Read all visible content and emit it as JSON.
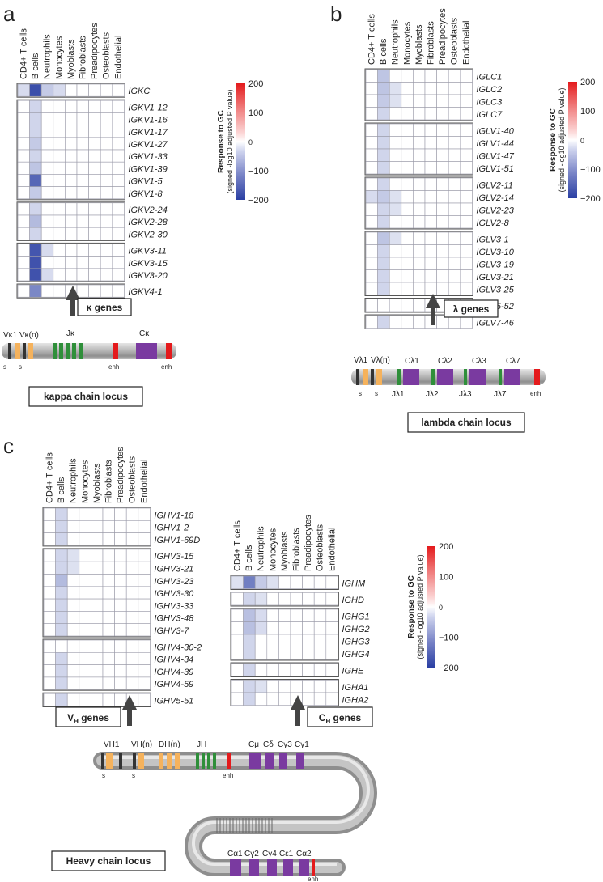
{
  "panels": {
    "a": "a",
    "b": "b",
    "c": "c"
  },
  "cell_types": [
    "CD4+ T cells",
    "B cells",
    "Neutrophils",
    "Monocytes",
    "Myoblasts",
    "Fibroblasts",
    "Preadipocytes",
    "Osteoblasts",
    "Endothelial"
  ],
  "legend": {
    "title": "Response to GC",
    "subtitle": "(signed -log10 adjusted P value)",
    "ticks": [
      "200",
      "100",
      "0",
      "−100",
      "−200"
    ],
    "tick_values": [
      200,
      100,
      0,
      -100,
      -200
    ]
  },
  "gene_group_labels": {
    "kappa": "κ genes",
    "lambda": "λ genes",
    "vh": "VH genes",
    "ch": "CH genes"
  },
  "locus_titles": {
    "kappa": "kappa chain locus",
    "lambda": "lambda chain locus",
    "heavy": "Heavy chain locus"
  },
  "locus_labels": {
    "kappa": {
      "v1": "Vκ1",
      "vn": "Vκ(n)",
      "j": "Jκ",
      "c": "Cκ",
      "s": "s",
      "enh": "enh"
    },
    "lambda": {
      "v1": "Vλ1",
      "vn": "Vλ(n)",
      "c1": "Cλ1",
      "c2": "Cλ2",
      "c3": "Cλ3",
      "c7": "Cλ7",
      "j1": "Jλ1",
      "j2": "Jλ2",
      "j3": "Jλ3",
      "j7": "Jλ7",
      "s": "s",
      "enh": "enh"
    },
    "heavy": {
      "v1": "VH1",
      "vn": "VH(n)",
      "d": "DH(n)",
      "j": "JH",
      "cmu": "Cμ",
      "cdelta": "Cδ",
      "cg3": "Cγ3",
      "cg1": "Cγ1",
      "s": "s",
      "enh": "enh",
      "bottom": [
        "Cα1",
        "Cγ2",
        "Cγ4",
        "Cε1",
        "Cα2"
      ]
    }
  },
  "colors": {
    "up": "#e41a1c",
    "down": "#2a3fa3",
    "arrow": "#444444",
    "grid": "#9a9aa8"
  },
  "chart_data": [
    {
      "type": "heatmap",
      "panel": "a",
      "x": [
        "CD4+ T cells",
        "B cells",
        "Neutrophils",
        "Monocytes",
        "Myoblasts",
        "Fibroblasts",
        "Preadipocytes",
        "Osteoblasts",
        "Endothelial"
      ],
      "value_range": [
        -200,
        200
      ],
      "groups": [
        {
          "rows": [
            "IGKC"
          ],
          "values": [
            [
              -25,
              -180,
              -40,
              -25,
              0,
              0,
              0,
              0,
              0
            ]
          ]
        },
        {
          "rows": [
            "IGKV1-12",
            "IGKV1-16",
            "IGKV1-17",
            "IGKV1-27",
            "IGKV1-33",
            "IGKV1-39",
            "IGKV1-5",
            "IGKV1-8"
          ],
          "values": [
            [
              0,
              -30,
              0,
              0,
              0,
              0,
              0,
              0,
              0
            ],
            [
              0,
              -30,
              0,
              0,
              0,
              0,
              0,
              0,
              0
            ],
            [
              0,
              -30,
              0,
              0,
              0,
              0,
              0,
              0,
              0
            ],
            [
              0,
              -40,
              0,
              0,
              0,
              0,
              0,
              0,
              0
            ],
            [
              0,
              -30,
              0,
              0,
              0,
              0,
              0,
              0,
              0
            ],
            [
              0,
              -45,
              0,
              0,
              0,
              0,
              0,
              0,
              0
            ],
            [
              0,
              -150,
              0,
              0,
              0,
              0,
              0,
              0,
              0
            ],
            [
              0,
              -40,
              0,
              0,
              0,
              0,
              0,
              0,
              0
            ]
          ]
        },
        {
          "rows": [
            "IGKV2-24",
            "IGKV2-28",
            "IGKV2-30"
          ],
          "values": [
            [
              0,
              -30,
              0,
              0,
              0,
              0,
              0,
              0,
              0
            ],
            [
              0,
              -55,
              0,
              0,
              0,
              0,
              0,
              0,
              0
            ],
            [
              0,
              -30,
              0,
              0,
              0,
              0,
              0,
              0,
              0
            ]
          ]
        },
        {
          "rows": [
            "IGKV3-11",
            "IGKV3-15",
            "IGKV3-20"
          ],
          "values": [
            [
              0,
              -170,
              -25,
              0,
              0,
              0,
              0,
              0,
              0
            ],
            [
              0,
              -175,
              0,
              0,
              0,
              0,
              0,
              0,
              0
            ],
            [
              0,
              -175,
              -25,
              0,
              0,
              0,
              0,
              0,
              0
            ]
          ]
        },
        {
          "rows": [
            "IGKV4-1"
          ],
          "values": [
            [
              0,
              -110,
              0,
              0,
              0,
              0,
              0,
              0,
              0
            ]
          ]
        }
      ]
    },
    {
      "type": "heatmap",
      "panel": "b",
      "x": [
        "CD4+ T cells",
        "B cells",
        "Neutrophils",
        "Monocytes",
        "Myoblasts",
        "Fibroblasts",
        "Preadipocytes",
        "Osteoblasts",
        "Endothelial"
      ],
      "value_range": [
        -200,
        200
      ],
      "groups": [
        {
          "rows": [
            "IGLC1",
            "IGLC2",
            "IGLC3",
            "IGLC7"
          ],
          "values": [
            [
              0,
              -45,
              0,
              0,
              0,
              0,
              0,
              0,
              0
            ],
            [
              0,
              -45,
              -20,
              0,
              0,
              0,
              0,
              0,
              0
            ],
            [
              0,
              -40,
              -20,
              0,
              0,
              0,
              0,
              0,
              0
            ],
            [
              0,
              -30,
              0,
              0,
              0,
              0,
              0,
              0,
              0
            ]
          ]
        },
        {
          "rows": [
            "IGLV1-40",
            "IGLV1-44",
            "IGLV1-47",
            "IGLV1-51"
          ],
          "values": [
            [
              0,
              -30,
              0,
              0,
              0,
              0,
              0,
              0,
              0
            ],
            [
              0,
              -30,
              0,
              0,
              0,
              0,
              0,
              0,
              0
            ],
            [
              0,
              -30,
              0,
              0,
              0,
              0,
              0,
              0,
              0
            ],
            [
              0,
              -30,
              0,
              0,
              0,
              0,
              0,
              0,
              0
            ]
          ]
        },
        {
          "rows": [
            "IGLV2-11",
            "IGLV2-14",
            "IGLV2-23",
            "IGLV2-8"
          ],
          "values": [
            [
              0,
              -30,
              0,
              0,
              0,
              0,
              0,
              0,
              0
            ],
            [
              -25,
              -40,
              -20,
              0,
              0,
              0,
              0,
              0,
              0
            ],
            [
              0,
              -30,
              -20,
              0,
              0,
              0,
              0,
              0,
              0
            ],
            [
              0,
              -30,
              0,
              0,
              0,
              0,
              0,
              0,
              0
            ]
          ]
        },
        {
          "rows": [
            "IGLV3-1",
            "IGLV3-10",
            "IGLV3-19",
            "IGLV3-21",
            "IGLV3-25"
          ],
          "values": [
            [
              0,
              -45,
              -20,
              0,
              0,
              0,
              0,
              0,
              0
            ],
            [
              0,
              -30,
              0,
              0,
              0,
              0,
              0,
              0,
              0
            ],
            [
              0,
              -30,
              0,
              0,
              0,
              0,
              0,
              0,
              0
            ],
            [
              0,
              -30,
              0,
              0,
              0,
              0,
              0,
              0,
              0
            ],
            [
              0,
              -30,
              0,
              0,
              0,
              0,
              0,
              0,
              0
            ]
          ]
        },
        {
          "rows": [
            "IGLV5-52"
          ],
          "values": [
            [
              0,
              0,
              0,
              0,
              0,
              0,
              0,
              0,
              0
            ]
          ]
        },
        {
          "rows": [
            "IGLV7-46"
          ],
          "values": [
            [
              0,
              -30,
              0,
              0,
              0,
              0,
              0,
              0,
              0
            ]
          ]
        }
      ]
    },
    {
      "type": "heatmap",
      "panel": "c-VH",
      "x": [
        "CD4+ T cells",
        "B cells",
        "Neutrophils",
        "Monocytes",
        "Myoblasts",
        "Fibroblasts",
        "Preadipocytes",
        "Osteoblasts",
        "Endothelial"
      ],
      "value_range": [
        -200,
        200
      ],
      "groups": [
        {
          "rows": [
            "IGHV1-18",
            "IGHV1-2",
            "IGHV1-69D"
          ],
          "values": [
            [
              0,
              -30,
              0,
              0,
              0,
              0,
              0,
              0,
              0
            ],
            [
              0,
              -30,
              0,
              0,
              0,
              0,
              0,
              0,
              0
            ],
            [
              0,
              -30,
              0,
              0,
              0,
              0,
              0,
              0,
              0
            ]
          ]
        },
        {
          "rows": [
            "IGHV3-15",
            "IGHV3-21",
            "IGHV3-23",
            "IGHV3-30",
            "IGHV3-33",
            "IGHV3-48",
            "IGHV3-7"
          ],
          "values": [
            [
              0,
              -30,
              -20,
              0,
              0,
              0,
              0,
              0,
              0
            ],
            [
              0,
              -30,
              -20,
              0,
              0,
              0,
              0,
              0,
              0
            ],
            [
              0,
              -55,
              0,
              0,
              0,
              0,
              0,
              0,
              0
            ],
            [
              0,
              -30,
              0,
              0,
              0,
              0,
              0,
              0,
              0
            ],
            [
              0,
              -30,
              0,
              0,
              0,
              0,
              0,
              0,
              0
            ],
            [
              0,
              -30,
              0,
              0,
              0,
              0,
              0,
              0,
              0
            ],
            [
              0,
              -30,
              0,
              0,
              0,
              0,
              0,
              0,
              0
            ]
          ]
        },
        {
          "rows": [
            "IGHV4-30-2",
            "IGHV4-34",
            "IGHV4-39",
            "IGHV4-59"
          ],
          "values": [
            [
              0,
              0,
              0,
              0,
              0,
              0,
              0,
              0,
              0
            ],
            [
              0,
              -30,
              0,
              0,
              0,
              0,
              0,
              0,
              0
            ],
            [
              0,
              -30,
              0,
              0,
              0,
              0,
              0,
              0,
              0
            ],
            [
              0,
              -30,
              0,
              0,
              0,
              0,
              0,
              0,
              0
            ]
          ]
        },
        {
          "rows": [
            "IGHV5-51"
          ],
          "values": [
            [
              0,
              -30,
              0,
              0,
              0,
              0,
              0,
              0,
              0
            ]
          ]
        }
      ]
    },
    {
      "type": "heatmap",
      "panel": "c-CH",
      "x": [
        "CD4+ T cells",
        "B cells",
        "Neutrophils",
        "Monocytes",
        "Myoblasts",
        "Fibroblasts",
        "Preadipocytes",
        "Osteoblasts",
        "Endothelial"
      ],
      "value_range": [
        -200,
        200
      ],
      "groups": [
        {
          "rows": [
            "IGHM"
          ],
          "values": [
            [
              -20,
              -120,
              -40,
              -20,
              0,
              0,
              0,
              0,
              0
            ]
          ]
        },
        {
          "rows": [
            "IGHD"
          ],
          "values": [
            [
              0,
              -30,
              -20,
              0,
              0,
              0,
              0,
              0,
              0
            ]
          ]
        },
        {
          "rows": [
            "IGHG1",
            "IGHG2",
            "IGHG3",
            "IGHG4"
          ],
          "values": [
            [
              0,
              -50,
              -25,
              0,
              0,
              0,
              0,
              0,
              0
            ],
            [
              0,
              -50,
              -25,
              0,
              0,
              0,
              0,
              0,
              0
            ],
            [
              0,
              -30,
              0,
              0,
              0,
              0,
              0,
              0,
              0
            ],
            [
              0,
              -30,
              0,
              0,
              0,
              0,
              0,
              0,
              0
            ]
          ]
        },
        {
          "rows": [
            "IGHE"
          ],
          "values": [
            [
              0,
              -30,
              0,
              0,
              0,
              0,
              0,
              0,
              0
            ]
          ]
        },
        {
          "rows": [
            "IGHA1",
            "IGHA2"
          ],
          "values": [
            [
              0,
              -30,
              -20,
              0,
              0,
              0,
              0,
              0,
              0
            ],
            [
              0,
              -30,
              0,
              0,
              0,
              0,
              0,
              0,
              0
            ]
          ]
        }
      ]
    }
  ]
}
